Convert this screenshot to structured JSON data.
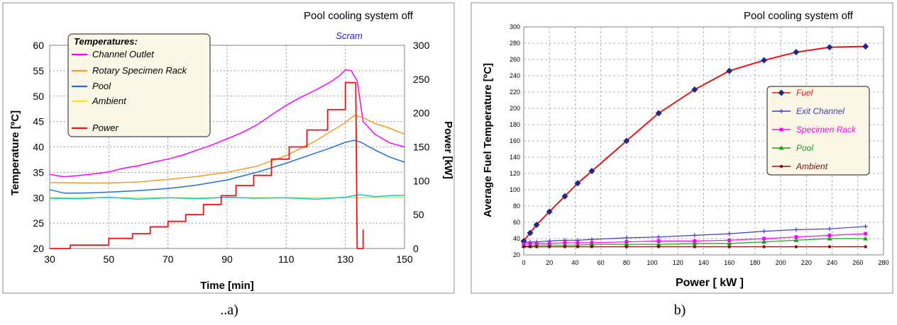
{
  "chart_data": [
    {
      "type": "line",
      "panel_label": "..a)",
      "annotation": "Pool cooling system off",
      "event_label": "Scram",
      "xlabel": "Time [min]",
      "ylabel": "Temperature [ºC]",
      "y2label": "Power [kW]",
      "legend_title": "Temperatures:",
      "xlim": [
        30,
        150
      ],
      "ylim": [
        20,
        60
      ],
      "y2lim": [
        0,
        300
      ],
      "xticks": [
        "30",
        "50",
        "70",
        "90",
        "110",
        "130",
        "150"
      ],
      "yticks": [
        "20",
        "25",
        "30",
        "35",
        "40",
        "45",
        "50",
        "55",
        "60"
      ],
      "y2ticks": [
        "0",
        "50",
        "100",
        "150",
        "200",
        "250",
        "300"
      ],
      "grid": true,
      "legend_position": "top-left",
      "series": [
        {
          "name": "Channel Outlet",
          "color": "#ff00ff",
          "axis": "left",
          "x": [
            30,
            35,
            40,
            45,
            50,
            55,
            60,
            65,
            70,
            75,
            80,
            85,
            90,
            95,
            100,
            105,
            110,
            115,
            120,
            125,
            128,
            130,
            132,
            134,
            135,
            136,
            140,
            145,
            150
          ],
          "y": [
            34.6,
            34.1,
            34.4,
            34.7,
            35.1,
            35.8,
            36.3,
            37.0,
            37.6,
            38.4,
            39.4,
            40.4,
            41.6,
            42.8,
            44.3,
            46.3,
            48.2,
            49.8,
            51.2,
            52.8,
            54.0,
            55.2,
            55.0,
            53.0,
            49.0,
            45.0,
            42.5,
            40.8,
            40.0
          ]
        },
        {
          "name": "Rotary Specimen Rack",
          "color": "#f59a28",
          "axis": "left",
          "x": [
            30,
            40,
            50,
            60,
            70,
            80,
            90,
            100,
            110,
            120,
            125,
            130,
            133,
            136,
            140,
            145,
            150
          ],
          "y": [
            33.0,
            32.9,
            32.9,
            33.1,
            33.6,
            34.2,
            35.0,
            36.2,
            38.3,
            41.2,
            43.0,
            44.8,
            46.2,
            45.8,
            44.6,
            43.7,
            42.5
          ]
        },
        {
          "name": "Pool",
          "color": "#1f6fe0",
          "axis": "left",
          "x": [
            30,
            35,
            40,
            50,
            60,
            70,
            80,
            90,
            100,
            110,
            120,
            125,
            130,
            133,
            135,
            140,
            145,
            150
          ],
          "y": [
            31.6,
            30.9,
            30.9,
            31.1,
            31.4,
            31.8,
            32.5,
            33.5,
            35.0,
            36.8,
            38.8,
            39.8,
            40.9,
            41.3,
            41.0,
            39.4,
            38.0,
            37.0
          ]
        },
        {
          "name": "Ambient",
          "color": "#ffe600",
          "axis": "left",
          "x": [
            30,
            50,
            70,
            90,
            110,
            130,
            150
          ],
          "y": [
            30.0,
            30.0,
            30.0,
            30.0,
            30.0,
            30.0,
            30.0
          ]
        },
        {
          "name": "",
          "color": "#00c8e8",
          "axis": "left",
          "x": [
            30,
            40,
            50,
            60,
            70,
            80,
            90,
            100,
            110,
            120,
            130,
            135,
            140,
            145,
            150
          ],
          "y": [
            29.9,
            29.8,
            30.1,
            29.7,
            30.0,
            29.8,
            30.1,
            29.9,
            30.0,
            29.7,
            30.1,
            30.6,
            30.2,
            30.4,
            30.5
          ]
        },
        {
          "name": "Power",
          "color": "#ee1111",
          "axis": "right",
          "x": [
            30,
            37,
            37,
            50,
            50,
            58,
            58,
            64,
            64,
            70,
            70,
            76,
            76,
            82,
            82,
            88,
            88,
            93,
            93,
            99,
            99,
            105,
            105,
            111,
            111,
            117,
            117,
            124,
            124,
            130,
            130,
            133.5,
            134,
            134,
            135,
            136,
            136
          ],
          "y": [
            0,
            0,
            5,
            5,
            15,
            15,
            22,
            22,
            32,
            32,
            40,
            40,
            50,
            50,
            65,
            65,
            78,
            78,
            93,
            93,
            108,
            108,
            132,
            132,
            150,
            150,
            175,
            175,
            205,
            205,
            245,
            245,
            0,
            0,
            0,
            0,
            28
          ]
        }
      ]
    },
    {
      "type": "line",
      "panel_label": "b)",
      "annotation": "Pool cooling system off",
      "xlabel": "Power [ kW ]",
      "ylabel": "Average Fuel Temperature [ºC]",
      "xlim": [
        0,
        280
      ],
      "ylim": [
        20,
        300
      ],
      "xticks": [
        "0",
        "20",
        "40",
        "60",
        "80",
        "100",
        "120",
        "140",
        "160",
        "180",
        "200",
        "220",
        "240",
        "260",
        "280"
      ],
      "yticks": [
        "20",
        "40",
        "60",
        "80",
        "100",
        "120",
        "140",
        "160",
        "180",
        "200",
        "220",
        "240",
        "260",
        "280",
        "300"
      ],
      "grid": true,
      "legend_position": "right",
      "series": [
        {
          "name": "Fuel",
          "color": "#ee1111",
          "marker_color": "#1a2a8a",
          "marker": "diamond",
          "x": [
            0,
            5,
            10,
            20,
            32,
            42,
            53,
            80,
            105,
            133,
            160,
            187,
            212,
            238,
            266
          ],
          "y": [
            37,
            47,
            57,
            73,
            92,
            108,
            123,
            160,
            194,
            223,
            246,
            259,
            269,
            275,
            276
          ]
        },
        {
          "name": "Exit Channel",
          "color": "#3a3acc",
          "marker": "cross",
          "x": [
            0,
            5,
            10,
            20,
            32,
            42,
            53,
            80,
            105,
            133,
            160,
            187,
            212,
            238,
            266
          ],
          "y": [
            35,
            36,
            36,
            37,
            38,
            38,
            39,
            41,
            42,
            44,
            46,
            49,
            51,
            52,
            55
          ]
        },
        {
          "name": "Specimen Rack",
          "color": "#ff00ff",
          "marker": "square",
          "x": [
            0,
            5,
            10,
            20,
            32,
            42,
            53,
            80,
            105,
            133,
            160,
            187,
            212,
            238,
            266
          ],
          "y": [
            33,
            34,
            34,
            34,
            35,
            35,
            35,
            36,
            37,
            37,
            38,
            40,
            42,
            44,
            46
          ]
        },
        {
          "name": "Pool",
          "color": "#1aa01a",
          "marker": "triangle",
          "x": [
            0,
            5,
            10,
            20,
            32,
            42,
            53,
            80,
            105,
            133,
            160,
            187,
            212,
            238,
            266
          ],
          "y": [
            31,
            31,
            32,
            32,
            32,
            32,
            33,
            33,
            33,
            34,
            34,
            36,
            38,
            40,
            40
          ]
        },
        {
          "name": "Ambient",
          "color": "#7a1010",
          "marker": "circle",
          "x": [
            0,
            5,
            10,
            20,
            32,
            42,
            53,
            80,
            105,
            133,
            160,
            187,
            212,
            238,
            266
          ],
          "y": [
            30,
            30,
            30,
            30,
            30,
            30,
            30,
            30,
            30,
            30,
            30,
            30,
            30,
            30,
            30
          ]
        }
      ]
    }
  ]
}
